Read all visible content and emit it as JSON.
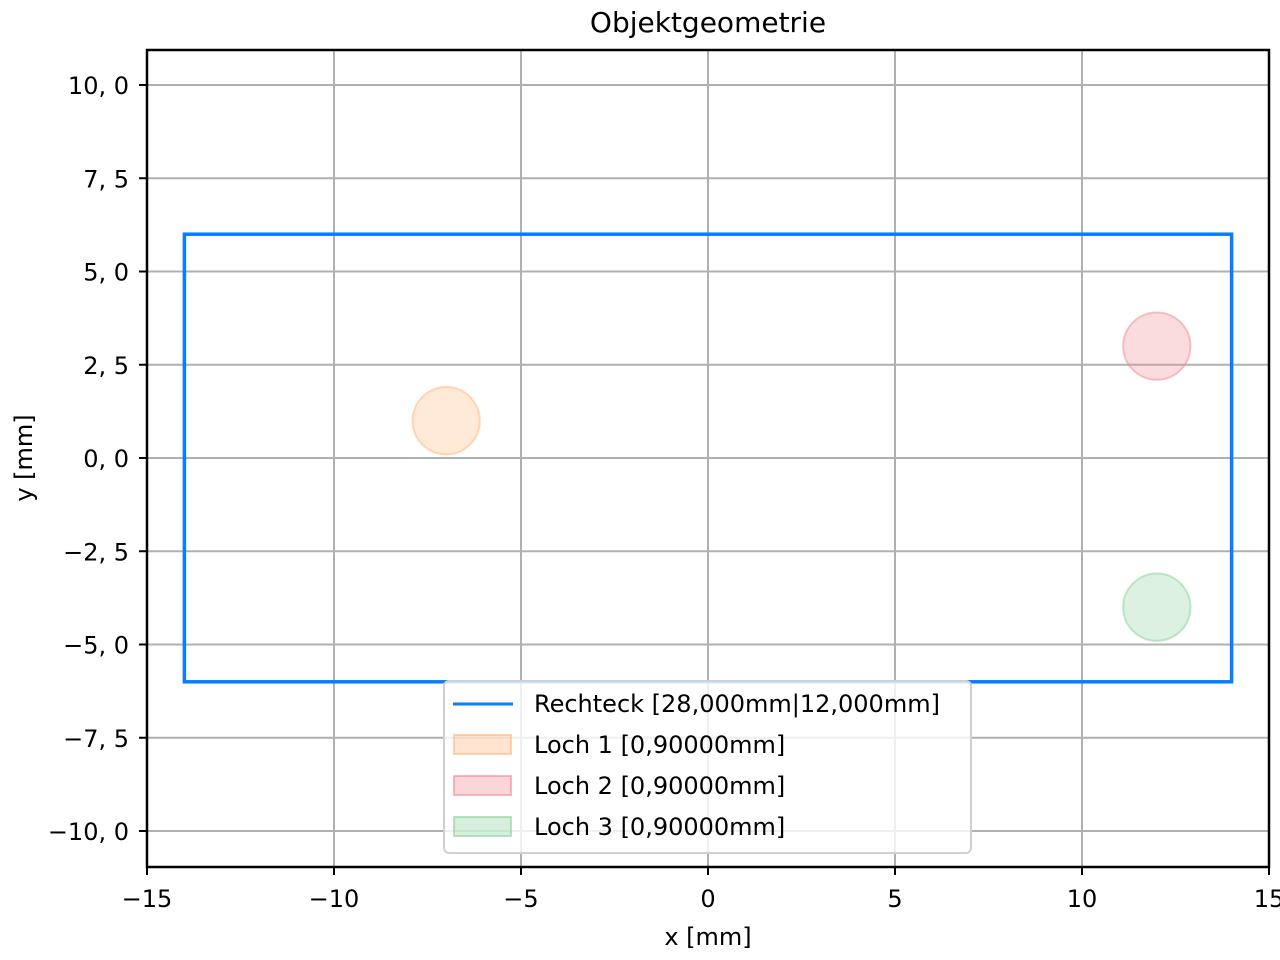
{
  "chart_data": {
    "type": "scatter",
    "title": "Objektgeometrie",
    "xlabel": "x [mm]",
    "ylabel": "y [mm]",
    "xlim": [
      -15,
      15
    ],
    "ylim": [
      -10.95,
      10.95
    ],
    "grid": true,
    "x_ticks": [
      -15,
      -10,
      -5,
      0,
      5,
      10,
      15
    ],
    "x_tick_labels": [
      "−15",
      "−10",
      "−5",
      "0",
      "5",
      "10",
      "15"
    ],
    "y_ticks": [
      10,
      7.5,
      5,
      2.5,
      0,
      -2.5,
      -5,
      -7.5,
      -10
    ],
    "y_tick_labels": [
      "10, 0",
      "7, 5",
      "5, 0",
      "2, 5",
      "0, 0",
      "−2, 5",
      "−5, 0",
      "−7, 5",
      "−10, 0"
    ],
    "legend_position": "lower center",
    "shapes": [
      {
        "name": "Rechteck [28,000mm|12,000mm]",
        "kind": "rectangle",
        "x_min": -14,
        "x_max": 14,
        "y_min": -6,
        "y_max": 6,
        "width": 28.0,
        "height": 12.0,
        "color": "#0A7CFF"
      },
      {
        "name": "Loch 1 [0,90000mm]",
        "kind": "circle",
        "cx": -7,
        "cy": 1,
        "radius": 0.9,
        "color": "#FFB57A"
      },
      {
        "name": "Loch 2 [0,90000mm]",
        "kind": "circle",
        "cx": 12,
        "cy": 3,
        "radius": 0.9,
        "color": "#F08A96"
      },
      {
        "name": "Loch 3 [0,90000mm]",
        "kind": "circle",
        "cx": 12,
        "cy": -4,
        "radius": 0.9,
        "color": "#8AD19A"
      }
    ]
  },
  "legend": {
    "items": [
      {
        "label": "Rechteck [28,000mm|12,000mm]"
      },
      {
        "label": "Loch 1 [0,90000mm]"
      },
      {
        "label": "Loch 2 [0,90000mm]"
      },
      {
        "label": "Loch 3 [0,90000mm]"
      }
    ]
  }
}
